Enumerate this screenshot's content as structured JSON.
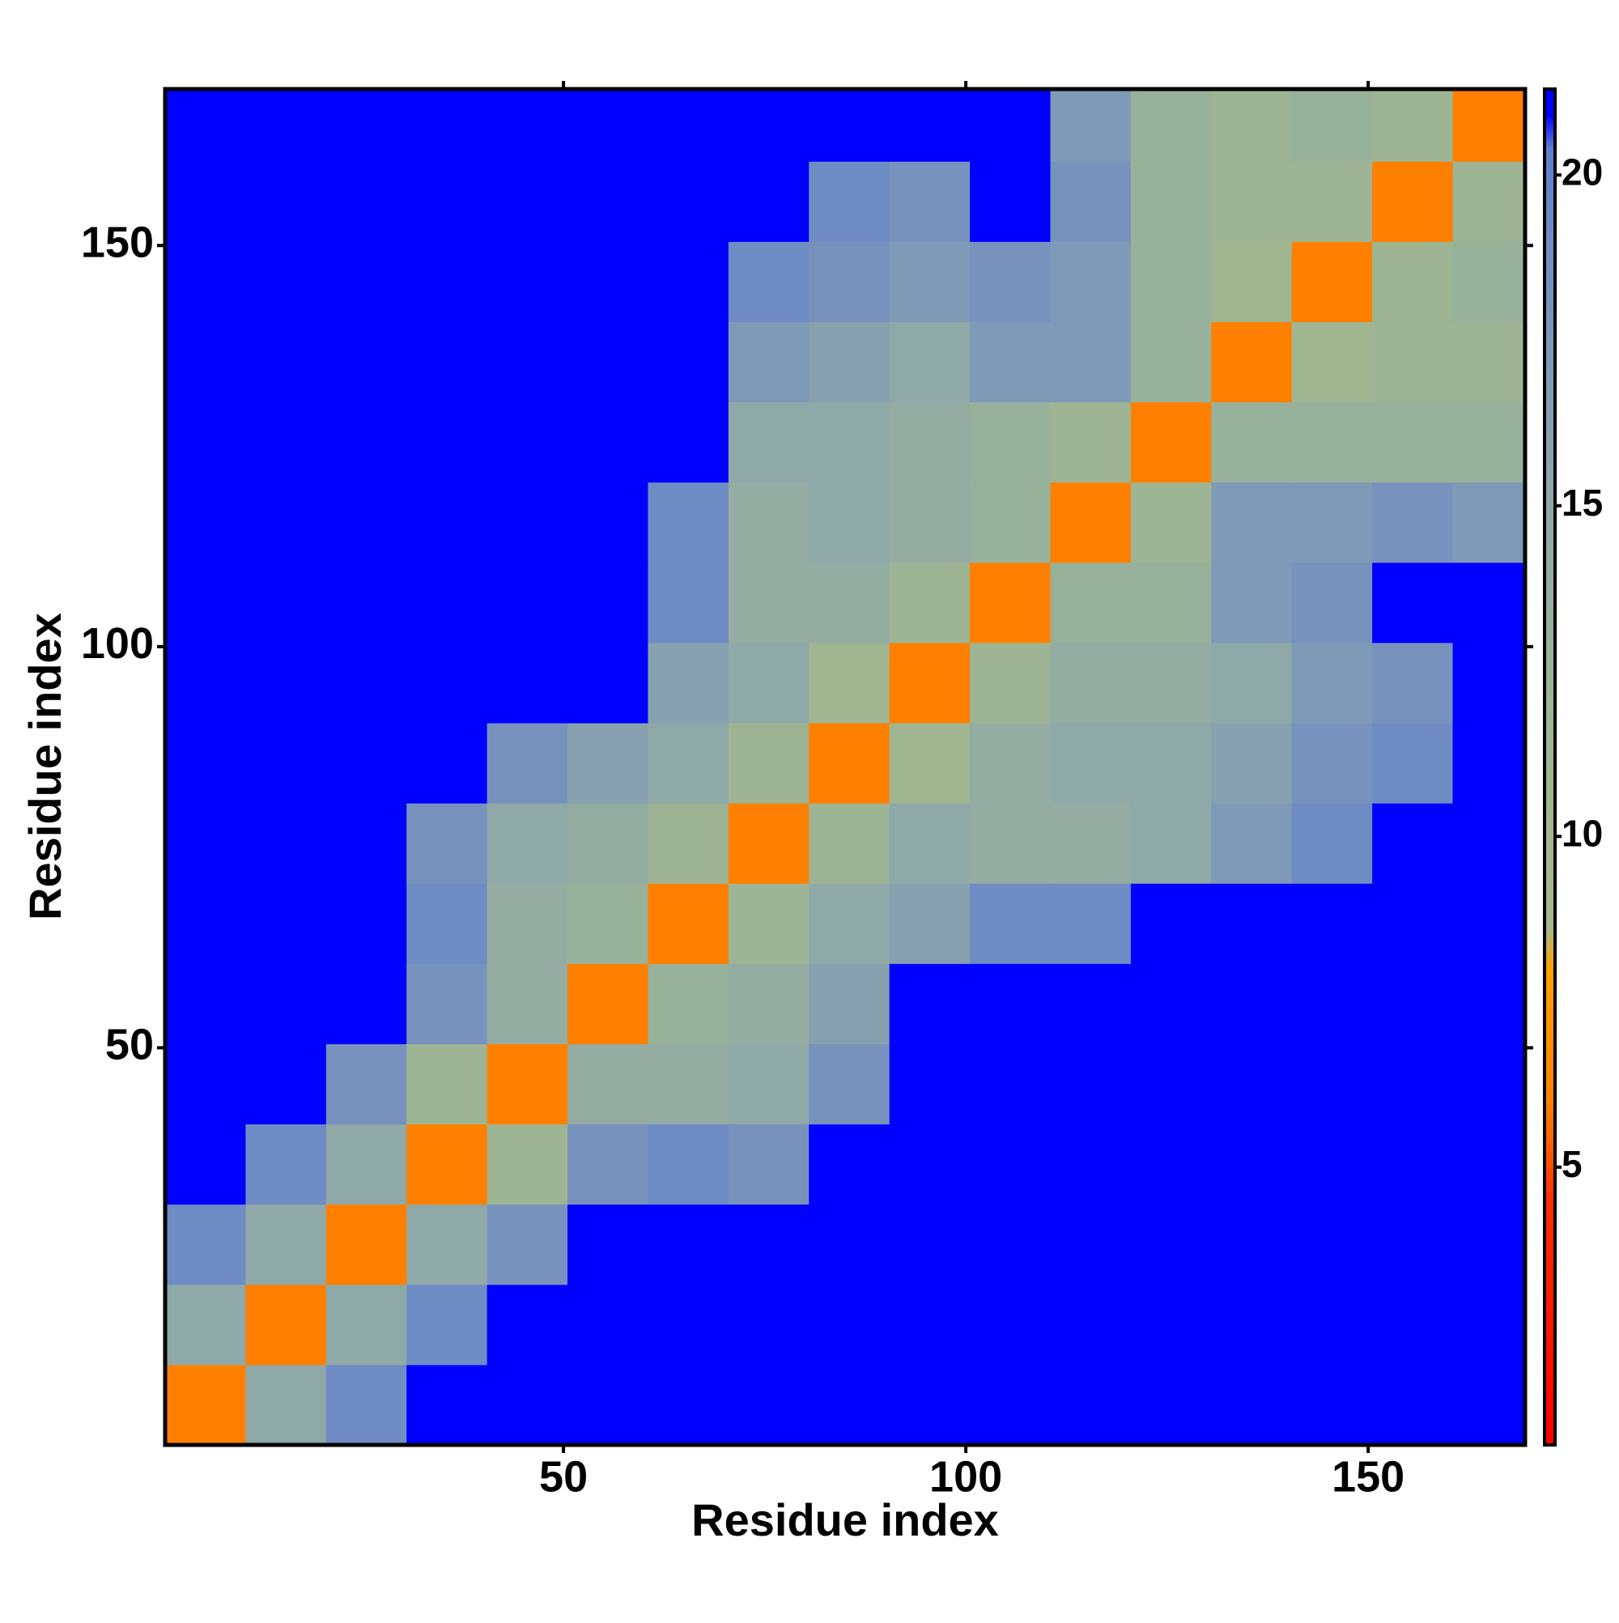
{
  "chart_data": {
    "type": "heatmap",
    "xlabel": "Residue index",
    "ylabel": "Residue index",
    "xlim": [
      0.5,
      169.5
    ],
    "ylim": [
      0.5,
      169.5
    ],
    "xticks": [
      50,
      100,
      150
    ],
    "yticks": [
      50,
      100,
      150
    ],
    "xbins": [
      0.5,
      10.5,
      20.5,
      30.5,
      40.5,
      50.5,
      60.5,
      70.5,
      80.5,
      90.5,
      100.5,
      110.5,
      120.5,
      130.5,
      140.5,
      150.5,
      160.5,
      169.5
    ],
    "ybins": [
      0.5,
      10.5,
      20.5,
      30.5,
      40.5,
      50.5,
      60.5,
      70.5,
      80.5,
      90.5,
      100.5,
      110.5,
      120.5,
      130.5,
      140.5,
      150.5,
      160.5,
      169.5
    ],
    "z": [
      [
        6,
        15,
        19,
        21.2,
        21.2,
        21.2,
        21.2,
        21.2,
        21.2,
        21.2,
        21.2,
        21.2,
        21.2,
        21.2,
        21.2,
        21.2,
        21.2
      ],
      [
        15,
        6,
        15,
        19,
        21.2,
        21.2,
        21.2,
        21.2,
        21.2,
        21.2,
        21.2,
        21.2,
        21.2,
        21.2,
        21.2,
        21.2,
        21.2
      ],
      [
        19,
        15,
        6,
        15,
        18,
        21.2,
        21.2,
        21.2,
        21.2,
        21.2,
        21.2,
        21.2,
        21.2,
        21.2,
        21.2,
        21.2,
        21.2
      ],
      [
        21.2,
        19,
        15,
        6,
        12,
        18,
        19,
        18,
        21.2,
        21.2,
        21.2,
        21.2,
        21.2,
        21.2,
        21.2,
        21.2,
        21.2
      ],
      [
        21.2,
        21.2,
        18,
        12,
        6,
        14,
        14,
        15,
        18,
        21.2,
        21.2,
        21.2,
        21.2,
        21.2,
        21.2,
        21.2,
        21.2
      ],
      [
        21.2,
        21.2,
        21.2,
        18,
        14,
        6,
        13,
        14,
        16,
        21.2,
        21.2,
        21.2,
        21.2,
        21.2,
        21.2,
        21.2,
        21.2
      ],
      [
        21.2,
        21.2,
        21.2,
        19,
        14,
        13,
        6,
        12,
        15,
        16,
        19,
        19,
        21.2,
        21.2,
        21.2,
        21.2,
        21.2
      ],
      [
        21.2,
        21.2,
        21.2,
        18,
        15,
        14,
        12,
        6,
        12,
        15,
        14,
        14,
        15,
        17,
        19,
        21.2,
        21.2
      ],
      [
        21.2,
        21.2,
        21.2,
        21.2,
        18,
        16,
        15,
        12,
        6,
        11,
        14,
        15,
        15,
        16,
        18,
        19,
        21.2
      ],
      [
        21.2,
        21.2,
        21.2,
        21.2,
        21.2,
        21.2,
        16,
        15,
        11,
        6,
        12,
        14,
        14,
        15,
        17,
        18,
        21.2
      ],
      [
        21.2,
        21.2,
        21.2,
        21.2,
        21.2,
        21.2,
        19,
        14,
        14,
        12,
        6,
        13,
        13,
        17,
        18,
        21.2,
        21.2
      ],
      [
        21.2,
        21.2,
        21.2,
        21.2,
        21.2,
        21.2,
        19,
        14,
        15,
        14,
        13,
        6,
        12,
        17,
        17,
        18,
        17
      ],
      [
        21.2,
        21.2,
        21.2,
        21.2,
        21.2,
        21.2,
        21.2,
        15,
        15,
        14,
        13,
        12,
        6,
        13,
        13,
        13,
        13
      ],
      [
        21.2,
        21.2,
        21.2,
        21.2,
        21.2,
        21.2,
        21.2,
        17,
        16,
        15,
        17,
        17,
        13,
        6,
        11,
        12,
        12
      ],
      [
        21.2,
        21.2,
        21.2,
        21.2,
        21.2,
        21.2,
        21.2,
        19,
        18,
        17,
        18,
        17,
        13,
        11,
        6,
        12,
        13
      ],
      [
        21.2,
        21.2,
        21.2,
        21.2,
        21.2,
        21.2,
        21.2,
        21.2,
        19,
        18,
        21.2,
        18,
        13,
        12,
        12,
        6,
        12
      ],
      [
        21.2,
        21.2,
        21.2,
        21.2,
        21.2,
        21.2,
        21.2,
        21.2,
        21.2,
        21.2,
        21.2,
        17,
        13,
        12,
        13,
        12,
        6
      ]
    ],
    "zlim": [
      0.8,
      21.3
    ],
    "zticks": [
      5,
      10,
      15,
      20
    ],
    "colorscale": [
      [
        0.8,
        "#ff0000"
      ],
      [
        4.5,
        "#ff3000"
      ],
      [
        6,
        "#ff8000"
      ],
      [
        8,
        "#ffa000"
      ],
      [
        8.6,
        "#a8b88a"
      ],
      [
        12,
        "#9db594"
      ],
      [
        15,
        "#8fa8a8"
      ],
      [
        19,
        "#6f8cc4"
      ],
      [
        20.4,
        "#5c7fd0"
      ],
      [
        20.9,
        "#0000ff"
      ],
      [
        21.3,
        "#0000ff"
      ]
    ]
  }
}
